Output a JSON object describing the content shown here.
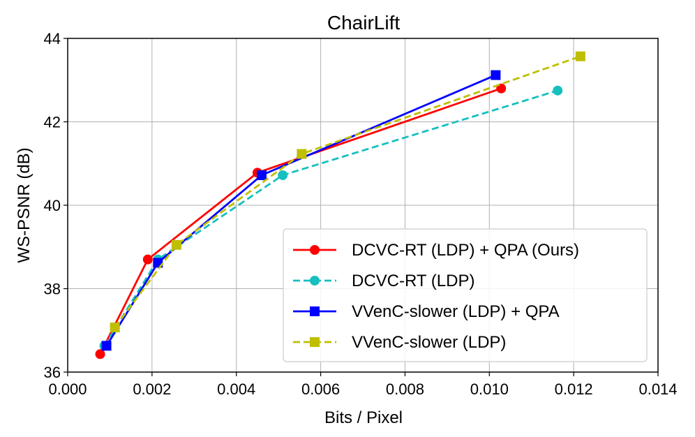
{
  "chart_data": {
    "type": "line",
    "title": "ChairLift",
    "xlabel": "Bits / Pixel",
    "ylabel": "WS-PSNR (dB)",
    "xlim": [
      0.0,
      0.014
    ],
    "ylim": [
      36,
      44
    ],
    "xticks": [
      0.0,
      0.002,
      0.004,
      0.006,
      0.008,
      0.01,
      0.012,
      0.014
    ],
    "xtick_labels": [
      "0.000",
      "0.002",
      "0.004",
      "0.006",
      "0.008",
      "0.010",
      "0.012",
      "0.014"
    ],
    "yticks": [
      36,
      38,
      40,
      42,
      44
    ],
    "ytick_labels": [
      "36",
      "38",
      "40",
      "42",
      "44"
    ],
    "grid": true,
    "legend_position": "bottom-right",
    "series": [
      {
        "name": "DCVC-RT (LDP) + QPA (Ours)",
        "color": "#ff0000",
        "dash": "solid",
        "marker": "circle",
        "x": [
          0.00077,
          0.0019,
          0.0045,
          0.01028
        ],
        "y": [
          36.43,
          38.7,
          40.78,
          42.8
        ]
      },
      {
        "name": "DCVC-RT (LDP)",
        "color": "#17bfbf",
        "dash": "dashed",
        "marker": "circle",
        "x": [
          0.00087,
          0.00214,
          0.0051,
          0.01162
        ],
        "y": [
          36.63,
          38.7,
          40.72,
          42.75
        ]
      },
      {
        "name": "VVenC-slower (LDP) + QPA",
        "color": "#0000ff",
        "dash": "solid",
        "marker": "square",
        "x": [
          0.00092,
          0.00214,
          0.0046,
          0.01015
        ],
        "y": [
          36.63,
          38.62,
          40.72,
          43.12
        ]
      },
      {
        "name": "VVenC-slower (LDP)",
        "color": "#bfbf00",
        "dash": "dashed",
        "marker": "square",
        "x": [
          0.00112,
          0.00258,
          0.00555,
          0.01216
        ],
        "y": [
          37.07,
          39.05,
          41.23,
          43.57
        ]
      }
    ]
  }
}
